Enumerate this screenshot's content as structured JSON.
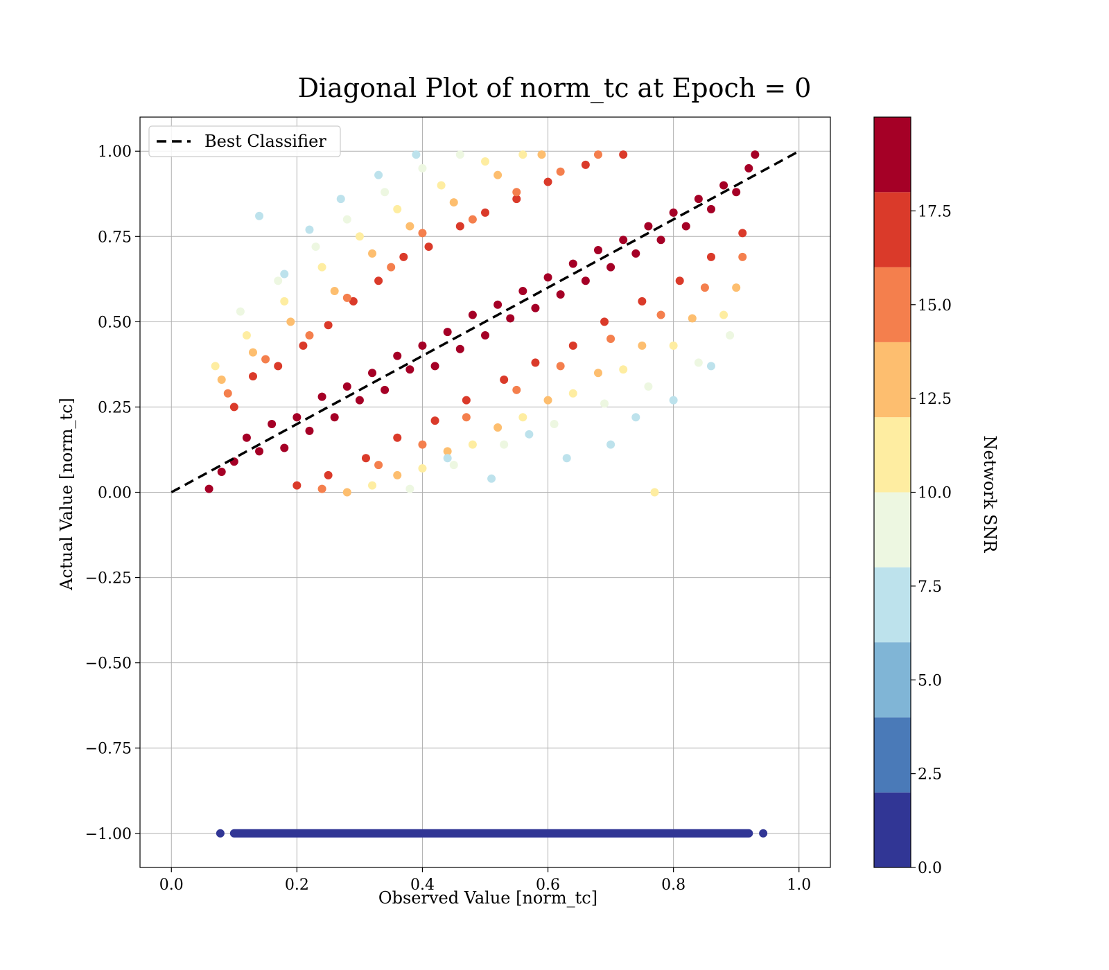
{
  "chart_data": {
    "type": "scatter",
    "title": "Diagonal Plot of norm_tc at Epoch = 0",
    "xlabel": "Observed Value [norm_tc]",
    "ylabel": "Actual Value [norm_tc]",
    "xlim": [
      -0.05,
      1.05
    ],
    "ylim": [
      -1.1,
      1.1
    ],
    "xticks": [
      0.0,
      0.2,
      0.4,
      0.6,
      0.8,
      1.0
    ],
    "xtick_labels": [
      "0.0",
      "0.2",
      "0.4",
      "0.6",
      "0.8",
      "1.0"
    ],
    "yticks": [
      1.0,
      0.75,
      0.5,
      0.25,
      0.0,
      -0.25,
      -0.5,
      -0.75,
      -1.0
    ],
    "ytick_labels": [
      "1.00",
      "0.75",
      "0.50",
      "0.25",
      "0.00",
      "−0.25",
      "−0.50",
      "−0.75",
      "−1.00"
    ],
    "grid": true,
    "legend": {
      "label": "Best Classifier",
      "placement": "upper-left",
      "line_style": "dashed",
      "color": "#000000"
    },
    "reference_line": {
      "x": [
        0.0,
        1.0
      ],
      "y": [
        0.0,
        1.0
      ]
    },
    "colorbar": {
      "label": "Network SNR",
      "range": [
        0,
        20
      ],
      "ticks": [
        0.0,
        2.5,
        5.0,
        7.5,
        10.0,
        12.5,
        15.0,
        17.5
      ],
      "tick_labels": [
        "0.0",
        "2.5",
        "5.0",
        "7.5",
        "10.0",
        "12.5",
        "15.0",
        "17.5"
      ],
      "bands": [
        {
          "from": 0,
          "to": 2,
          "color": "#313695"
        },
        {
          "from": 2,
          "to": 4,
          "color": "#4a7ab8"
        },
        {
          "from": 4,
          "to": 6,
          "color": "#80b5d6"
        },
        {
          "from": 6,
          "to": 8,
          "color": "#bde2ec"
        },
        {
          "from": 8,
          "to": 10,
          "color": "#edf7e1"
        },
        {
          "from": 10,
          "to": 12,
          "color": "#feeda1"
        },
        {
          "from": 12,
          "to": 14,
          "color": "#fdbe6f"
        },
        {
          "from": 14,
          "to": 16,
          "color": "#f47f4d"
        },
        {
          "from": 16,
          "to": 18,
          "color": "#da3a2a"
        },
        {
          "from": 18,
          "to": 20,
          "color": "#a50026"
        }
      ]
    },
    "series": [
      {
        "points": [
          [
            0.06,
            0.01,
            19
          ],
          [
            0.08,
            0.06,
            19
          ],
          [
            0.1,
            0.09,
            19
          ],
          [
            0.12,
            0.16,
            19
          ],
          [
            0.14,
            0.12,
            19
          ],
          [
            0.16,
            0.2,
            19
          ],
          [
            0.18,
            0.13,
            19
          ],
          [
            0.2,
            0.22,
            19
          ],
          [
            0.22,
            0.18,
            19
          ],
          [
            0.24,
            0.28,
            19
          ],
          [
            0.26,
            0.22,
            19
          ],
          [
            0.28,
            0.31,
            19
          ],
          [
            0.3,
            0.27,
            19
          ],
          [
            0.32,
            0.35,
            19
          ],
          [
            0.34,
            0.3,
            19
          ],
          [
            0.36,
            0.4,
            19
          ],
          [
            0.38,
            0.36,
            19
          ],
          [
            0.4,
            0.43,
            19
          ],
          [
            0.42,
            0.37,
            19
          ],
          [
            0.44,
            0.47,
            19
          ],
          [
            0.46,
            0.42,
            19
          ],
          [
            0.48,
            0.52,
            19
          ],
          [
            0.5,
            0.46,
            19
          ],
          [
            0.52,
            0.55,
            19
          ],
          [
            0.54,
            0.51,
            19
          ],
          [
            0.56,
            0.59,
            19
          ],
          [
            0.58,
            0.54,
            19
          ],
          [
            0.6,
            0.63,
            19
          ],
          [
            0.62,
            0.58,
            19
          ],
          [
            0.64,
            0.67,
            19
          ],
          [
            0.66,
            0.62,
            19
          ],
          [
            0.68,
            0.71,
            19
          ],
          [
            0.7,
            0.66,
            19
          ],
          [
            0.72,
            0.74,
            19
          ],
          [
            0.74,
            0.7,
            19
          ],
          [
            0.76,
            0.78,
            19
          ],
          [
            0.78,
            0.74,
            19
          ],
          [
            0.8,
            0.82,
            19
          ],
          [
            0.82,
            0.78,
            19
          ],
          [
            0.84,
            0.86,
            19
          ],
          [
            0.86,
            0.83,
            19
          ],
          [
            0.88,
            0.9,
            19
          ],
          [
            0.9,
            0.88,
            19
          ],
          [
            0.92,
            0.95,
            19
          ],
          [
            0.93,
            0.99,
            19
          ],
          [
            0.1,
            0.25,
            17
          ],
          [
            0.13,
            0.34,
            17
          ],
          [
            0.17,
            0.37,
            17
          ],
          [
            0.21,
            0.43,
            17
          ],
          [
            0.25,
            0.49,
            17
          ],
          [
            0.29,
            0.56,
            17
          ],
          [
            0.33,
            0.62,
            17
          ],
          [
            0.37,
            0.69,
            17
          ],
          [
            0.41,
            0.72,
            17
          ],
          [
            0.46,
            0.78,
            17
          ],
          [
            0.5,
            0.82,
            17
          ],
          [
            0.55,
            0.86,
            17
          ],
          [
            0.6,
            0.91,
            17
          ],
          [
            0.66,
            0.96,
            17
          ],
          [
            0.72,
            0.99,
            17
          ],
          [
            0.2,
            0.02,
            17
          ],
          [
            0.25,
            0.05,
            17
          ],
          [
            0.31,
            0.1,
            17
          ],
          [
            0.36,
            0.16,
            17
          ],
          [
            0.42,
            0.21,
            17
          ],
          [
            0.47,
            0.27,
            17
          ],
          [
            0.53,
            0.33,
            17
          ],
          [
            0.58,
            0.38,
            17
          ],
          [
            0.64,
            0.43,
            17
          ],
          [
            0.69,
            0.5,
            17
          ],
          [
            0.75,
            0.56,
            17
          ],
          [
            0.81,
            0.62,
            17
          ],
          [
            0.86,
            0.69,
            17
          ],
          [
            0.91,
            0.76,
            17
          ],
          [
            0.09,
            0.29,
            15
          ],
          [
            0.15,
            0.39,
            15
          ],
          [
            0.22,
            0.46,
            15
          ],
          [
            0.28,
            0.57,
            15
          ],
          [
            0.35,
            0.66,
            15
          ],
          [
            0.4,
            0.76,
            15
          ],
          [
            0.48,
            0.8,
            15
          ],
          [
            0.55,
            0.88,
            15
          ],
          [
            0.62,
            0.94,
            15
          ],
          [
            0.68,
            0.99,
            15
          ],
          [
            0.24,
            0.01,
            15
          ],
          [
            0.33,
            0.08,
            15
          ],
          [
            0.4,
            0.14,
            15
          ],
          [
            0.47,
            0.22,
            15
          ],
          [
            0.55,
            0.3,
            15
          ],
          [
            0.62,
            0.37,
            15
          ],
          [
            0.7,
            0.45,
            15
          ],
          [
            0.78,
            0.52,
            15
          ],
          [
            0.85,
            0.6,
            15
          ],
          [
            0.91,
            0.69,
            15
          ],
          [
            0.08,
            0.33,
            13
          ],
          [
            0.13,
            0.41,
            13
          ],
          [
            0.19,
            0.5,
            13
          ],
          [
            0.26,
            0.59,
            13
          ],
          [
            0.32,
            0.7,
            13
          ],
          [
            0.38,
            0.78,
            13
          ],
          [
            0.45,
            0.85,
            13
          ],
          [
            0.52,
            0.93,
            13
          ],
          [
            0.59,
            0.99,
            13
          ],
          [
            0.28,
            0.0,
            13
          ],
          [
            0.36,
            0.05,
            13
          ],
          [
            0.44,
            0.12,
            13
          ],
          [
            0.52,
            0.19,
            13
          ],
          [
            0.6,
            0.27,
            13
          ],
          [
            0.68,
            0.35,
            13
          ],
          [
            0.75,
            0.43,
            13
          ],
          [
            0.83,
            0.51,
            13
          ],
          [
            0.9,
            0.6,
            13
          ],
          [
            0.07,
            0.37,
            11
          ],
          [
            0.12,
            0.46,
            11
          ],
          [
            0.18,
            0.56,
            11
          ],
          [
            0.24,
            0.66,
            11
          ],
          [
            0.3,
            0.75,
            11
          ],
          [
            0.36,
            0.83,
            11
          ],
          [
            0.43,
            0.9,
            11
          ],
          [
            0.5,
            0.97,
            11
          ],
          [
            0.56,
            0.99,
            11
          ],
          [
            0.32,
            0.02,
            11
          ],
          [
            0.4,
            0.07,
            11
          ],
          [
            0.48,
            0.14,
            11
          ],
          [
            0.56,
            0.22,
            11
          ],
          [
            0.64,
            0.29,
            11
          ],
          [
            0.72,
            0.36,
            11
          ],
          [
            0.8,
            0.43,
            11
          ],
          [
            0.88,
            0.52,
            11
          ],
          [
            0.77,
            0.0,
            11
          ],
          [
            0.11,
            0.53,
            9
          ],
          [
            0.17,
            0.62,
            9
          ],
          [
            0.23,
            0.72,
            9
          ],
          [
            0.28,
            0.8,
            9
          ],
          [
            0.34,
            0.88,
            9
          ],
          [
            0.4,
            0.95,
            9
          ],
          [
            0.46,
            0.99,
            9
          ],
          [
            0.38,
            0.01,
            9
          ],
          [
            0.45,
            0.08,
            9
          ],
          [
            0.53,
            0.14,
            9
          ],
          [
            0.61,
            0.2,
            9
          ],
          [
            0.69,
            0.26,
            9
          ],
          [
            0.76,
            0.31,
            9
          ],
          [
            0.84,
            0.38,
            9
          ],
          [
            0.89,
            0.46,
            9
          ],
          [
            0.14,
            0.81,
            7
          ],
          [
            0.18,
            0.64,
            7
          ],
          [
            0.22,
            0.77,
            7
          ],
          [
            0.27,
            0.86,
            7
          ],
          [
            0.33,
            0.93,
            7
          ],
          [
            0.39,
            0.99,
            7
          ],
          [
            0.44,
            0.1,
            7
          ],
          [
            0.51,
            0.04,
            7
          ],
          [
            0.57,
            0.17,
            7
          ],
          [
            0.63,
            0.1,
            7
          ],
          [
            0.7,
            0.14,
            7
          ],
          [
            0.74,
            0.22,
            7
          ],
          [
            0.8,
            0.27,
            7
          ],
          [
            0.86,
            0.37,
            7
          ]
        ]
      },
      {
        "points": [
          [
            0.078,
            -1.0,
            0
          ],
          [
            0.943,
            -1.0,
            0
          ]
        ],
        "band": {
          "x": [
            0.1,
            0.92
          ],
          "y": -1.0,
          "snr": 0
        }
      }
    ]
  }
}
